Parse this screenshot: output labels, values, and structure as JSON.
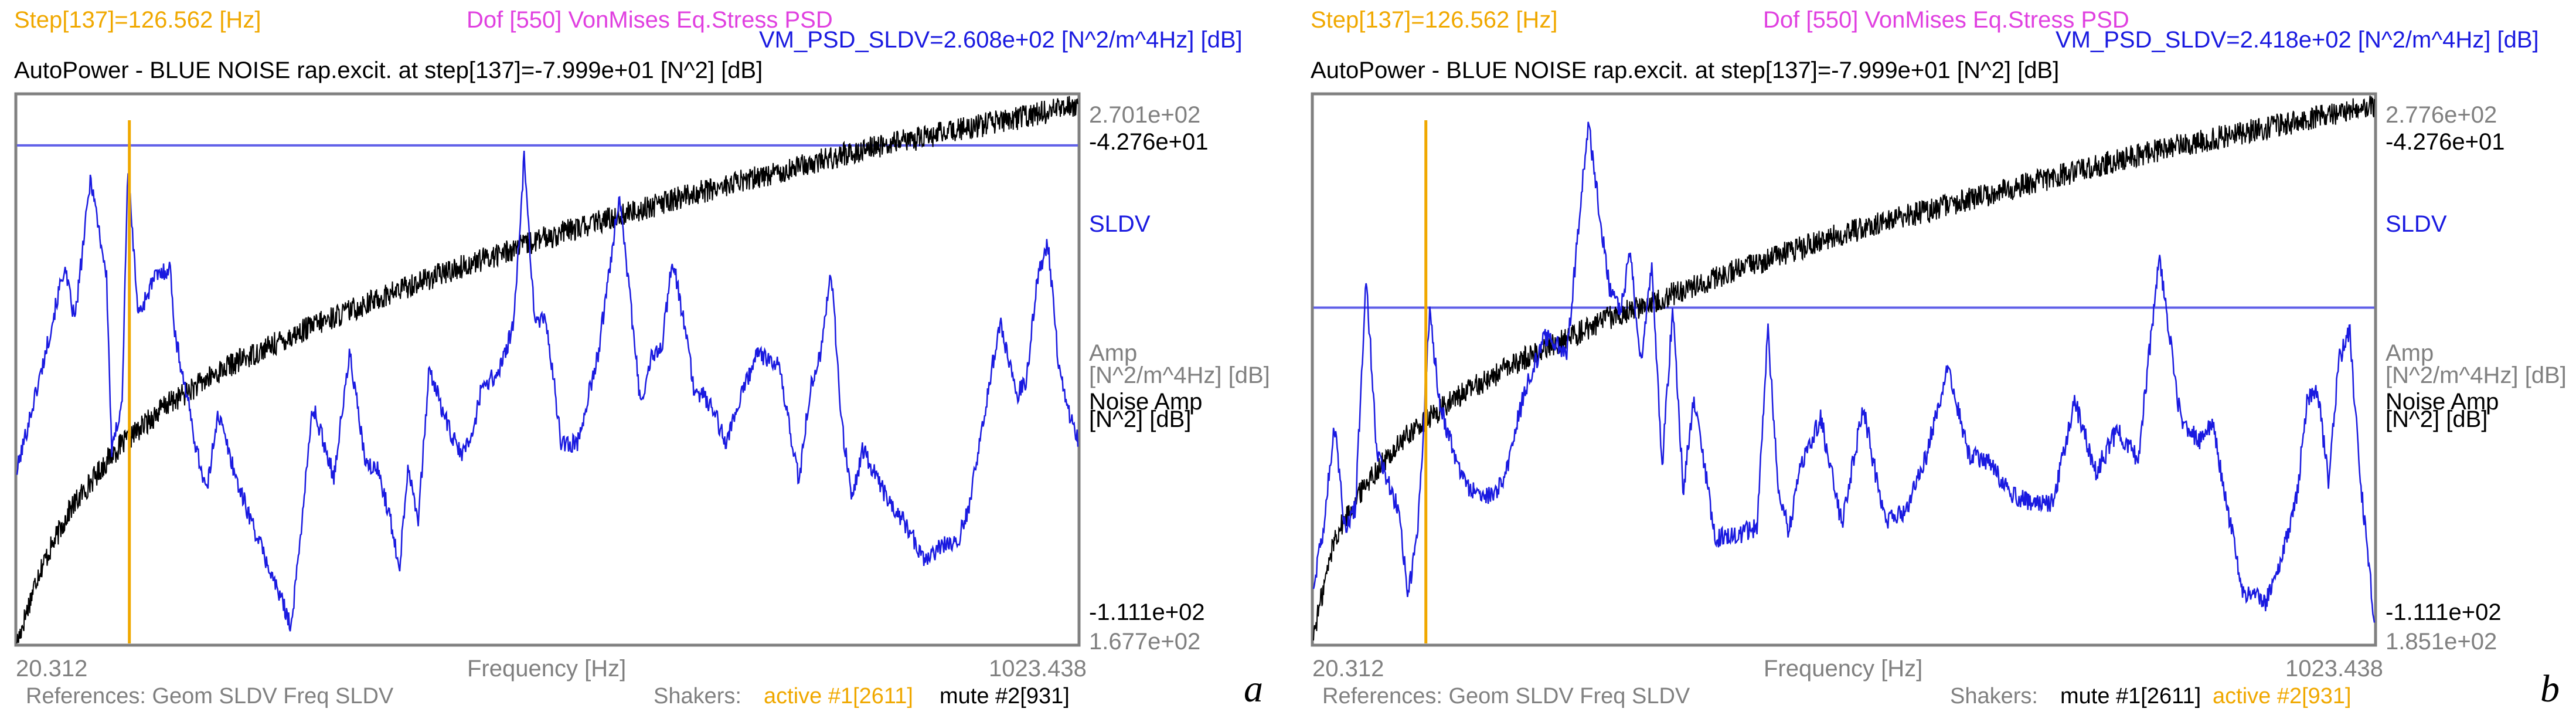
{
  "chart_data": [
    {
      "type": "line",
      "panel_label": "a",
      "header": {
        "step": "Step[137]=126.562 [Hz]",
        "dof": "Dof [550] VonMises Eq.Stress PSD",
        "vm": "VM_PSD_SLDV=2.608e+02 [N^2/m^4Hz] [dB]",
        "autopower": "AutoPower - BLUE NOISE rap.excit. at step[137]=-7.999e+01 [N^2] [dB]"
      },
      "right_axis": {
        "amp_top": "2.701e+02",
        "noise_top": "-4.276e+01",
        "sldv_label": "SLDV",
        "amp_label_1": "Amp",
        "amp_label_2": "[N^2/m^4Hz] [dB]",
        "noise_label_1": "Noise Amp",
        "noise_label_2": "[N^2] [dB]",
        "noise_bottom": "-1.111e+02",
        "amp_bottom": "1.677e+02"
      },
      "x_axis": {
        "min_label": "20.312",
        "label": "Frequency [Hz]",
        "max_label": "1023.438",
        "range": [
          20.312,
          1023.438
        ]
      },
      "footer": {
        "references": "References: Geom SLDV Freq SLDV",
        "shakers": "Shakers:",
        "shaker1": "active #1[2611]",
        "shaker2": "mute #2[931]"
      },
      "amp_range": [
        167.7,
        270.1
      ],
      "noise_range": [
        -111.1,
        -42.76
      ],
      "cursor_freq": 126.562,
      "sldv_level": 260.8,
      "series": [
        {
          "name": "VM_PSD_SLDV (blue)",
          "color": "#1a1ae0",
          "x": [
            20.3,
            30,
            45,
            65,
            75,
            90,
            105,
            110,
            120,
            125,
            135,
            150,
            165,
            170,
            180,
            190,
            200,
            210,
            230,
            260,
            280,
            300,
            320,
            335,
            350,
            362,
            372,
            382,
            390,
            400,
            410,
            420,
            430,
            440,
            450,
            460,
            475,
            490,
            500,
            510,
            520,
            535,
            550,
            570,
            590,
            610,
            620,
            630,
            640,
            655,
            660,
            670,
            680,
            690,
            700,
            720,
            740,
            760,
            770,
            780,
            790,
            800,
            810,
            820,
            840,
            860,
            880,
            895,
            900,
            910,
            920,
            935,
            950,
            965,
            975,
            985,
            995,
            1005,
            1015,
            1023.4
          ],
          "values": [
            200.0,
            208.0,
            220.0,
            238.0,
            228.0,
            255.0,
            236.0,
            203.0,
            214.0,
            257.0,
            229.0,
            236.0,
            238.0,
            225.0,
            215.0,
            204.0,
            196.0,
            211.0,
            197.0,
            181.0,
            171.0,
            212.0,
            199.0,
            222.0,
            201.0,
            200.0,
            192.0,
            182.0,
            201.0,
            191.0,
            219.0,
            213.0,
            207.0,
            203.0,
            206.0,
            216.0,
            218.0,
            227.0,
            259.0,
            227.0,
            229.0,
            205.0,
            205.0,
            222.0,
            252.0,
            212.0,
            221.0,
            223.0,
            240.0,
            223.0,
            215.0,
            214.0,
            211.0,
            205.0,
            211.0,
            222.0,
            220.0,
            198.0,
            215.0,
            222.0,
            238.0,
            209.0,
            195.0,
            204.0,
            196.0,
            190.0,
            183.0,
            186.0,
            186.0,
            187.0,
            193.0,
            211.0,
            228.0,
            214.0,
            217.0,
            236.0,
            243.0,
            220.0,
            211.0,
            206.0
          ]
        },
        {
          "name": "BLUE NOISE AutoPower (black)",
          "color": "#000000",
          "x": [
            20.3,
            40,
            70,
            110,
            160,
            220,
            300,
            400,
            520,
            660,
            820,
            1023.4
          ],
          "values": [
            -111.1,
            -102.5,
            -94.5,
            -87.5,
            -81.5,
            -76.5,
            -71.5,
            -66.0,
            -60.5,
            -55.0,
            -49.5,
            -44.0
          ]
        }
      ]
    },
    {
      "type": "line",
      "panel_label": "b",
      "header": {
        "step": "Step[137]=126.562 [Hz]",
        "dof": "Dof [550] VonMises Eq.Stress PSD",
        "vm": "VM_PSD_SLDV=2.418e+02 [N^2/m^4Hz] [dB]",
        "autopower": "AutoPower - BLUE NOISE rap.excit. at step[137]=-7.999e+01 [N^2] [dB]"
      },
      "right_axis": {
        "amp_top": "2.776e+02",
        "noise_top": "-4.276e+01",
        "sldv_label": "SLDV",
        "amp_label_1": "Amp",
        "amp_label_2": "[N^2/m^4Hz] [dB]",
        "noise_label_1": "Noise Amp",
        "noise_label_2": "[N^2] [dB]",
        "noise_bottom": "-1.111e+02",
        "amp_bottom": "1.851e+02"
      },
      "x_axis": {
        "min_label": "20.312",
        "label": "Frequency [Hz]",
        "max_label": "1023.438",
        "range": [
          20.312,
          1023.438
        ]
      },
      "footer": {
        "references": "References: Geom SLDV Freq SLDV",
        "shakers": "Shakers:",
        "shaker1": "mute #1[2611]",
        "shaker2": "active #2[931]"
      },
      "amp_range": [
        185.1,
        277.6
      ],
      "noise_range": [
        -111.1,
        -42.76
      ],
      "cursor_freq": 126.562,
      "sldv_level": 241.8,
      "series": [
        {
          "name": "VM_PSD_SLDV (blue)",
          "color": "#1a1ae0",
          "x": [
            20.3,
            30,
            40,
            50,
            60,
            70,
            80,
            100,
            110,
            120,
            130,
            140,
            160,
            180,
            200,
            220,
            240,
            260,
            280,
            300,
            310,
            320,
            330,
            340,
            350,
            360,
            370,
            380,
            400,
            420,
            440,
            450,
            460,
            470,
            480,
            500,
            520,
            540,
            560,
            580,
            600,
            620,
            640,
            660,
            680,
            700,
            720,
            740,
            760,
            780,
            800,
            820,
            840,
            860,
            870,
            880,
            890,
            900,
            910,
            920,
            930,
            940,
            950,
            960,
            970,
            980,
            990,
            1000,
            1010,
            1023.4
          ],
          "values": [
            195.0,
            205.0,
            222.0,
            205.0,
            208.0,
            247.0,
            218.0,
            208.0,
            193.0,
            207.0,
            241.0,
            225.0,
            213.0,
            209.0,
            212.0,
            228.0,
            237.0,
            234.0,
            273.0,
            245.0,
            241.0,
            251.0,
            232.0,
            249.0,
            215.0,
            242.0,
            211.0,
            227.0,
            203.0,
            203.0,
            205.0,
            238.0,
            210.0,
            204.0,
            215.0,
            223.0,
            205.0,
            225.0,
            206.0,
            207.0,
            217.0,
            232.0,
            217.0,
            216.0,
            210.0,
            209.0,
            209.0,
            226.0,
            214.0,
            221.0,
            216.0,
            250.0,
            223.0,
            219.0,
            223.0,
            212.0,
            203.0,
            193.0,
            193.0,
            192.0,
            195.0,
            203.0,
            210.0,
            226.0,
            228.0,
            212.0,
            233.0,
            238.0,
            213.0,
            189.0
          ]
        },
        {
          "name": "BLUE NOISE AutoPower (black)",
          "color": "#000000",
          "x": [
            20.3,
            40,
            70,
            110,
            160,
            220,
            300,
            400,
            520,
            660,
            820,
            1023.4
          ],
          "values": [
            -110.0,
            -98.0,
            -91.0,
            -85.0,
            -80.0,
            -75.5,
            -70.5,
            -65.5,
            -60.0,
            -55.0,
            -49.5,
            -44.0
          ]
        }
      ]
    }
  ],
  "colors": {
    "orange": "#f0a800",
    "magenta": "#e040e0",
    "blue": "#1a1ae0",
    "grey": "#808080",
    "black": "#000000"
  }
}
